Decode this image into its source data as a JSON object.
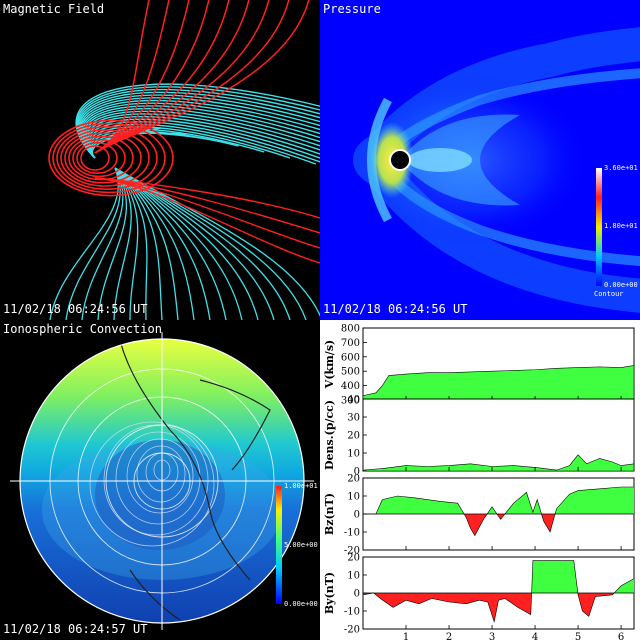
{
  "panels": {
    "magnetic_field": {
      "title": "Magnetic Field",
      "timestamp": "11/02/18 06:24:56 UT",
      "field_colors": [
        "#ff2020",
        "#40e0e8"
      ]
    },
    "pressure": {
      "title": "Pressure",
      "timestamp": "11/02/18 06:24:56 UT",
      "colorbar": {
        "max_label": "3.60e+01",
        "mid_label": "1.80e+01",
        "min_label": "0.00e+00",
        "caption": "Contour"
      }
    },
    "ionospheric_convection": {
      "title": "Ionospheric Convection",
      "timestamp": "11/02/18 06:24:57 UT",
      "colorbar": {
        "max_label": "1.00e+01",
        "mid_label": "5.00e+00",
        "min_label": "0.00e+00"
      }
    }
  },
  "chart_data": [
    {
      "type": "area",
      "ylabel": "V(km/s)",
      "ylim": [
        300,
        800
      ],
      "yticks": [
        "800",
        "700",
        "600",
        "500",
        "400",
        "300"
      ],
      "x": [
        0,
        0.15,
        0.3,
        0.45,
        0.6,
        1.0,
        1.5,
        2.0,
        2.5,
        3.0,
        3.5,
        4.0,
        4.5,
        5.0,
        5.5,
        6.0,
        6.3
      ],
      "values": [
        330,
        340,
        350,
        400,
        470,
        480,
        490,
        490,
        495,
        500,
        505,
        510,
        520,
        525,
        530,
        525,
        540
      ],
      "fill": "#40ff40"
    },
    {
      "type": "area",
      "ylabel": "Dens.(p/cc)",
      "ylim": [
        0,
        40
      ],
      "yticks": [
        "40",
        "30",
        "20",
        "10",
        "0"
      ],
      "x": [
        0,
        0.5,
        1.0,
        1.5,
        2.0,
        2.5,
        3.0,
        3.5,
        4.0,
        4.5,
        4.8,
        5.0,
        5.2,
        5.5,
        5.8,
        6.0,
        6.3
      ],
      "values": [
        0.5,
        1.5,
        3,
        2.5,
        3,
        4,
        2.5,
        3,
        2,
        0.5,
        3,
        9,
        4,
        7,
        5,
        3,
        4
      ],
      "fill": "#40ff40"
    },
    {
      "type": "area",
      "ylabel": "Bz(nT)",
      "ylim": [
        -20,
        20
      ],
      "yticks": [
        "20",
        "10",
        "0",
        "-10",
        "-20"
      ],
      "x": [
        0,
        0.3,
        0.45,
        0.8,
        1.2,
        1.8,
        2.2,
        2.4,
        2.5,
        2.6,
        2.8,
        3.0,
        3.2,
        3.5,
        3.8,
        3.95,
        4.05,
        4.2,
        4.35,
        4.5,
        4.8,
        5.0,
        5.5,
        6.0,
        6.3
      ],
      "values": [
        0,
        0,
        8,
        10,
        9,
        7,
        6,
        -2,
        -8,
        -12,
        -3,
        4,
        -3,
        6,
        12,
        1,
        8,
        -4,
        -10,
        3,
        11,
        13,
        14,
        15,
        15
      ],
      "fill_pos": "#40ff40",
      "fill_neg": "#ff2020"
    },
    {
      "type": "area",
      "ylabel": "By(nT)",
      "ylim": [
        -20,
        20
      ],
      "yticks": [
        "20",
        "10",
        "0",
        "-10",
        "-20"
      ],
      "x": [
        0,
        0.25,
        0.4,
        0.7,
        1.0,
        1.3,
        1.6,
        2.0,
        2.4,
        2.7,
        2.9,
        3.05,
        3.15,
        3.3,
        3.6,
        3.9,
        3.95,
        4.4,
        4.9,
        5.0,
        5.1,
        5.25,
        5.4,
        5.8,
        6.0,
        6.3
      ],
      "values": [
        -1,
        0,
        -3,
        -8,
        -4,
        -6,
        -3,
        -5,
        -6,
        -4,
        -5,
        -16,
        -4,
        -3,
        -8,
        -12,
        18,
        18,
        18,
        -1,
        -10,
        -13,
        -2,
        -1,
        4,
        8
      ],
      "fill_pos": "#40ff40",
      "fill_neg": "#ff2020"
    }
  ],
  "x_axis": {
    "ticks": [
      "1",
      "2",
      "3",
      "4",
      "5",
      "6"
    ],
    "tick_values": [
      1,
      2,
      3,
      4,
      5,
      6
    ],
    "xlim": [
      0,
      6.3
    ]
  }
}
